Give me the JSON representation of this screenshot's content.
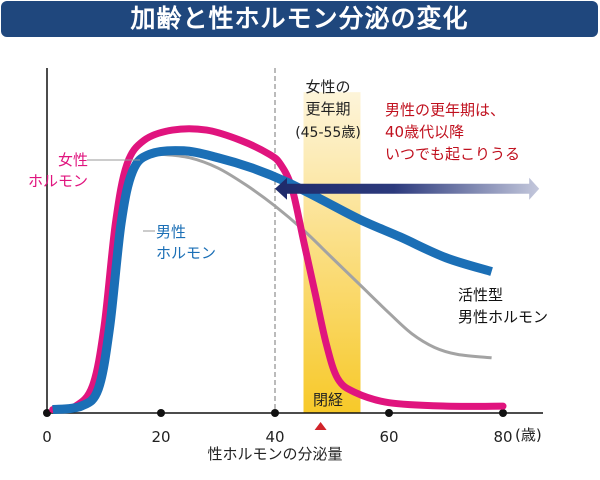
{
  "title": "加齢と性ホルモン分泌の変化",
  "chart_data": {
    "type": "line",
    "title": "加齢と性ホルモン分泌の変化",
    "xlabel": "性ホルモンの分泌量",
    "x_unit": "(歳)",
    "ylabel": "",
    "xlim": [
      0,
      80
    ],
    "ylim": [
      0,
      100
    ],
    "x_ticks": [
      0,
      20,
      40,
      60,
      80
    ],
    "x_tick_labels": [
      "0",
      "20",
      "40",
      "60",
      "80"
    ],
    "series": [
      {
        "name": "女性ホルモン",
        "label_lines": [
          "女性",
          "ホルモン"
        ],
        "color": "#e0147e",
        "points": [
          [
            1,
            1
          ],
          [
            5,
            2
          ],
          [
            8,
            8
          ],
          [
            10,
            25
          ],
          [
            12,
            55
          ],
          [
            14,
            72
          ],
          [
            17,
            79
          ],
          [
            22,
            82
          ],
          [
            28,
            82
          ],
          [
            34,
            79
          ],
          [
            39,
            75
          ],
          [
            41,
            72
          ],
          [
            43,
            65
          ],
          [
            45,
            50
          ],
          [
            47,
            35
          ],
          [
            49,
            20
          ],
          [
            51,
            10
          ],
          [
            54,
            6
          ],
          [
            60,
            3
          ],
          [
            70,
            2
          ],
          [
            80,
            2
          ]
        ]
      },
      {
        "name": "男性ホルモン",
        "label_lines": [
          "男性",
          "ホルモン"
        ],
        "color": "#1b6fb6",
        "points": [
          [
            1,
            1
          ],
          [
            6,
            2
          ],
          [
            9,
            7
          ],
          [
            11,
            25
          ],
          [
            13,
            55
          ],
          [
            15,
            70
          ],
          [
            18,
            75
          ],
          [
            24,
            76
          ],
          [
            30,
            74
          ],
          [
            36,
            71
          ],
          [
            42,
            67
          ],
          [
            48,
            62
          ],
          [
            55,
            56
          ],
          [
            62,
            51
          ],
          [
            70,
            45
          ],
          [
            78,
            41
          ]
        ]
      },
      {
        "name": "活性型男性ホルモン",
        "label_lines": [
          "活性型",
          "男性ホルモン"
        ],
        "color": "#a3a3a3",
        "points": [
          [
            17,
            75
          ],
          [
            20,
            75
          ],
          [
            25,
            74
          ],
          [
            30,
            71
          ],
          [
            35,
            66
          ],
          [
            40,
            60
          ],
          [
            45,
            53
          ],
          [
            50,
            45
          ],
          [
            55,
            37
          ],
          [
            60,
            29
          ],
          [
            64,
            23
          ],
          [
            68,
            19
          ],
          [
            72,
            17
          ],
          [
            78,
            16
          ]
        ]
      }
    ],
    "annotations": {
      "menopause_band": {
        "x_range": [
          45,
          55
        ],
        "label": "閉経",
        "marker_x": 48
      },
      "female_menopause_label": [
        "女性の",
        "更年期",
        "(45-55歳)"
      ],
      "divider_x": 40,
      "male_andropause_arrow": {
        "x_range": [
          40,
          86
        ],
        "level": 65
      },
      "male_andropause_label": [
        "男性の更年期は、",
        "40歳代以降",
        "いつでも起こりうる"
      ]
    },
    "grid": false,
    "legend": "inline"
  },
  "colors": {
    "title_bg": "#1f477d",
    "female": "#e0147e",
    "male": "#1b6fb6",
    "active_male": "#a3a3a3",
    "arrow": "#1e2a6a",
    "band": "#f7c929",
    "red_text": "#c0101e"
  }
}
